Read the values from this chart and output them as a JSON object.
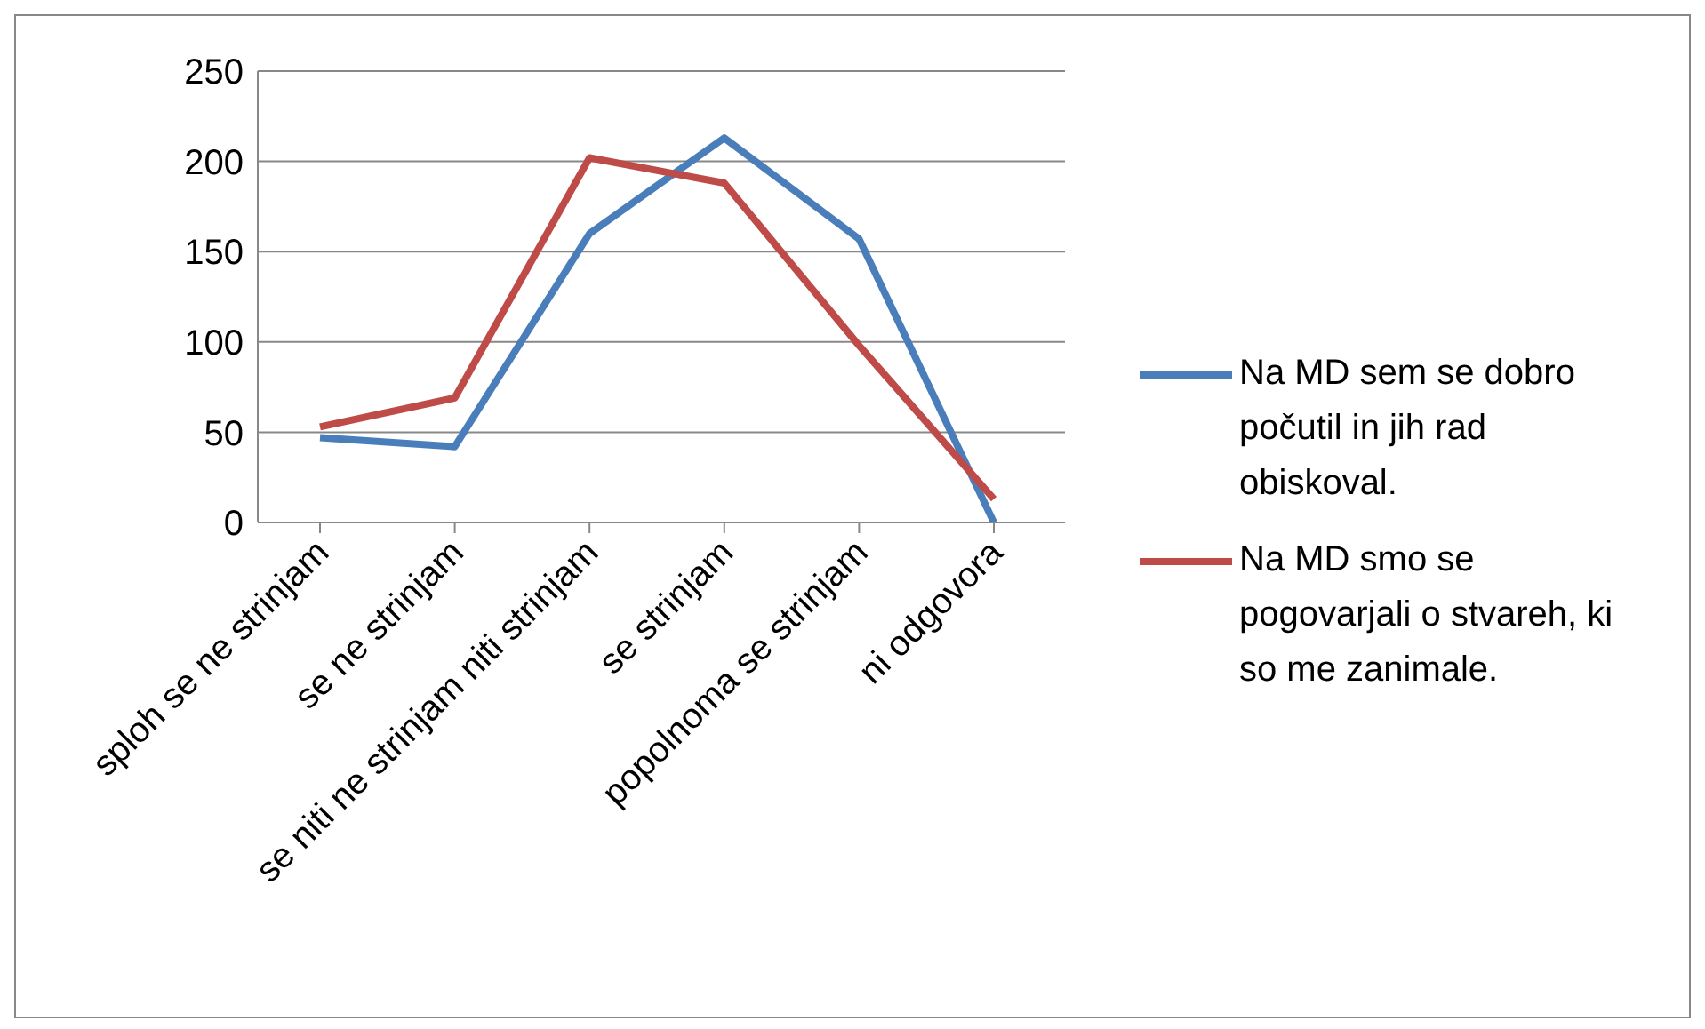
{
  "chart_data": {
    "type": "line",
    "categories": [
      "sploh se ne strinjam",
      "se ne strinjam",
      "se niti ne strinjam niti strinjam",
      "se strinjam",
      "popolnoma se strinjam",
      "ni odgovora"
    ],
    "series": [
      {
        "name": "Na MD sem se dobro počutil in jih rad obiskoval.",
        "color": "#4a7ebb",
        "values": [
          47,
          42,
          160,
          213,
          157,
          0
        ]
      },
      {
        "name": "Na MD smo se pogovarjali o stvareh, ki so me zanimale.",
        "color": "#be4b48",
        "values": [
          53,
          69,
          202,
          188,
          98,
          13
        ]
      }
    ],
    "ylim": [
      0,
      250
    ],
    "yticks": [
      0,
      50,
      100,
      150,
      200,
      250
    ],
    "grid": "y",
    "legend": "right",
    "marker": "none",
    "line_style": "solid"
  }
}
